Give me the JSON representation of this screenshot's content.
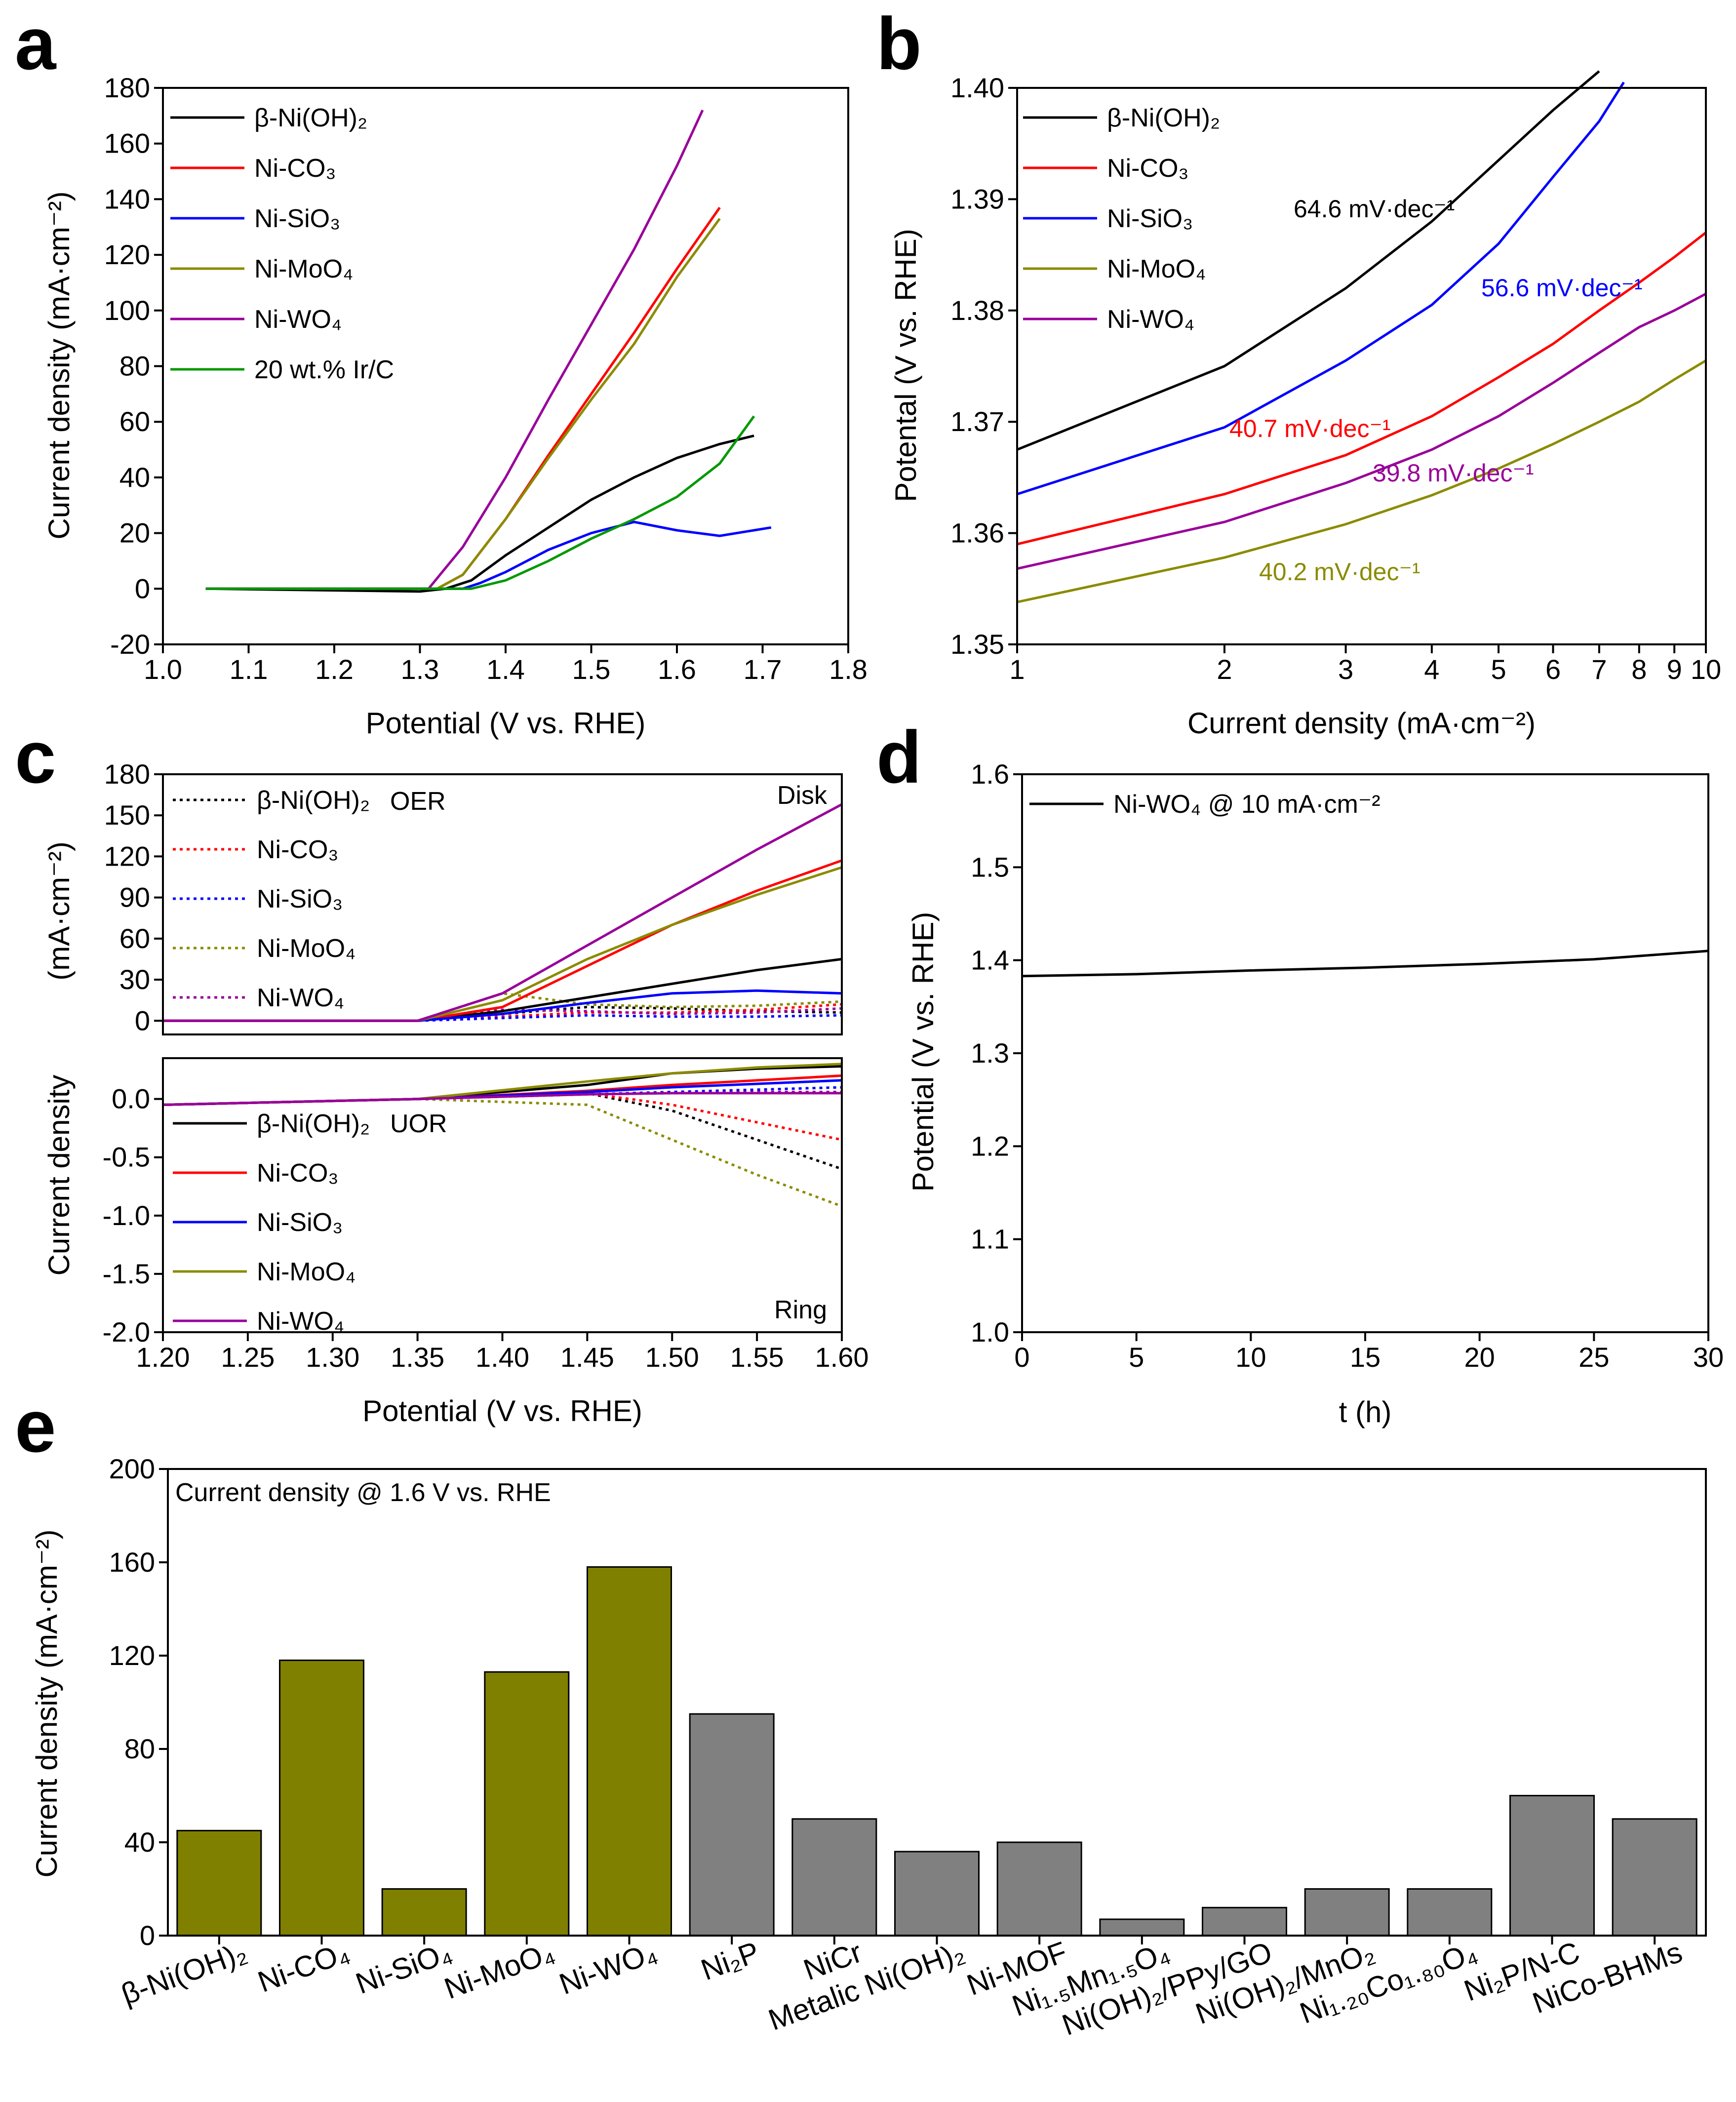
{
  "chart_data": [
    {
      "id": "a",
      "panel_label": "a",
      "type": "line",
      "xlabel": "Potential (V vs. RHE)",
      "ylabel": "Current density (mA·cm⁻²)",
      "xlim": [
        1.0,
        1.8
      ],
      "ylim": [
        -20,
        180
      ],
      "xticks": [
        "1.0",
        "1.1",
        "1.2",
        "1.3",
        "1.4",
        "1.5",
        "1.6",
        "1.7",
        "1.8"
      ],
      "yticks": [
        "-20",
        "0",
        "20",
        "40",
        "60",
        "80",
        "100",
        "120",
        "140",
        "160",
        "180"
      ],
      "series": [
        {
          "name": "β-Ni(OH)₂",
          "color": "#000000",
          "x": [
            1.05,
            1.3,
            1.33,
            1.36,
            1.4,
            1.45,
            1.5,
            1.55,
            1.6,
            1.65,
            1.69
          ],
          "y": [
            0,
            -1,
            0,
            3,
            12,
            22,
            32,
            40,
            47,
            52,
            55
          ]
        },
        {
          "name": "Ni-CO₃",
          "color": "#ff0000",
          "x": [
            1.05,
            1.32,
            1.35,
            1.4,
            1.45,
            1.5,
            1.55,
            1.6,
            1.65
          ],
          "y": [
            0,
            0,
            5,
            25,
            48,
            70,
            92,
            115,
            137
          ]
        },
        {
          "name": "Ni-SiO₃",
          "color": "#0000ff",
          "x": [
            1.05,
            1.35,
            1.37,
            1.4,
            1.45,
            1.5,
            1.55,
            1.6,
            1.65,
            1.71
          ],
          "y": [
            0,
            0,
            2,
            6,
            14,
            20,
            24,
            21,
            19,
            22
          ]
        },
        {
          "name": "Ni-MoO₄",
          "color": "#8b8b00",
          "x": [
            1.05,
            1.32,
            1.35,
            1.4,
            1.45,
            1.5,
            1.55,
            1.6,
            1.65
          ],
          "y": [
            0,
            0,
            5,
            25,
            47,
            68,
            88,
            112,
            133
          ]
        },
        {
          "name": "Ni-WO₄",
          "color": "#990099",
          "x": [
            1.05,
            1.31,
            1.35,
            1.4,
            1.45,
            1.5,
            1.55,
            1.6,
            1.63
          ],
          "y": [
            0,
            0,
            15,
            40,
            68,
            95,
            122,
            152,
            172
          ]
        },
        {
          "name": "20 wt.% Ir/C",
          "color": "#009900",
          "x": [
            1.05,
            1.36,
            1.4,
            1.45,
            1.5,
            1.55,
            1.6,
            1.65,
            1.69
          ],
          "y": [
            0,
            0,
            3,
            10,
            18,
            25,
            33,
            45,
            62
          ]
        }
      ]
    },
    {
      "id": "b",
      "panel_label": "b",
      "type": "line",
      "xlabel": "Current density (mA·cm⁻²)",
      "ylabel": "Potental (V vs. RHE)",
      "xscale": "log",
      "xlim": [
        1,
        10
      ],
      "ylim": [
        1.35,
        1.4
      ],
      "xticks": [
        "1",
        "2",
        "3",
        "4",
        "5",
        "6",
        "7",
        "8",
        "9",
        "10"
      ],
      "yticks": [
        "1.35",
        "1.36",
        "1.37",
        "1.38",
        "1.39",
        "1.40"
      ],
      "series": [
        {
          "name": "β-Ni(OH)₂",
          "color": "#000000",
          "x": [
            1,
            2,
            3,
            4,
            5,
            6,
            7
          ],
          "y": [
            1.3675,
            1.375,
            1.382,
            1.388,
            1.3935,
            1.398,
            1.4015
          ]
        },
        {
          "name": "Ni-CO₃",
          "color": "#ff0000",
          "x": [
            1,
            2,
            3,
            4,
            5,
            6,
            7,
            8,
            9,
            10
          ],
          "y": [
            1.359,
            1.3635,
            1.367,
            1.3705,
            1.374,
            1.377,
            1.38,
            1.3825,
            1.3848,
            1.387
          ]
        },
        {
          "name": "Ni-SiO₃",
          "color": "#0000ff",
          "x": [
            1,
            2,
            3,
            4,
            5,
            6,
            7,
            7.6
          ],
          "y": [
            1.3635,
            1.3695,
            1.3755,
            1.3805,
            1.386,
            1.392,
            1.397,
            1.4005
          ]
        },
        {
          "name": "Ni-MoO₄",
          "color": "#8b8b00",
          "x": [
            1,
            2,
            3,
            4,
            5,
            6,
            7,
            8,
            9,
            10
          ],
          "y": [
            1.3538,
            1.3578,
            1.3608,
            1.3634,
            1.3658,
            1.368,
            1.37,
            1.3718,
            1.3738,
            1.3755
          ]
        },
        {
          "name": "Ni-WO₄",
          "color": "#990099",
          "x": [
            1,
            2,
            3,
            4,
            5,
            6,
            7,
            8,
            9,
            10
          ],
          "y": [
            1.3568,
            1.361,
            1.3645,
            1.3675,
            1.3705,
            1.3735,
            1.3762,
            1.3785,
            1.38,
            1.3815
          ]
        }
      ],
      "annotations": [
        {
          "text": "64.6 mV·dec⁻¹",
          "color": "#000000"
        },
        {
          "text": "56.6 mV·dec⁻¹",
          "color": "#0000ff"
        },
        {
          "text": "40.7 mV·dec⁻¹",
          "color": "#ff0000"
        },
        {
          "text": "39.8 mV·dec⁻¹",
          "color": "#990099"
        },
        {
          "text": "40.2 mV·dec⁻¹",
          "color": "#8b8b00"
        }
      ]
    },
    {
      "id": "c",
      "panel_label": "c",
      "type": "line",
      "xlabel": "Potential (V vs. RHE)",
      "ylabel_top": "(mA·cm⁻²)",
      "ylabel_shared": "Current density",
      "xlim": [
        1.2,
        1.6
      ],
      "xticks": [
        "1.20",
        "1.25",
        "1.30",
        "1.35",
        "1.40",
        "1.45",
        "1.50",
        "1.55",
        "1.60"
      ],
      "disk": {
        "label": "Disk",
        "ylim": [
          -10,
          180
        ],
        "yticks": [
          "0",
          "30",
          "60",
          "90",
          "120",
          "150",
          "180"
        ],
        "legend_title": "OER",
        "series_oer": [
          {
            "name": "β-Ni(OH)₂",
            "color": "#000000",
            "x": [
              1.2,
              1.35,
              1.4,
              1.45,
              1.5,
              1.55,
              1.6
            ],
            "y": [
              0,
              0,
              5,
              10,
              9,
              7,
              6
            ]
          },
          {
            "name": "Ni-CO₃",
            "color": "#ff0000",
            "x": [
              1.2,
              1.35,
              1.4,
              1.45,
              1.5,
              1.55,
              1.6
            ],
            "y": [
              0,
              0,
              3,
              6,
              6,
              8,
              12
            ]
          },
          {
            "name": "Ni-SiO₃",
            "color": "#0000ff",
            "x": [
              1.2,
              1.35,
              1.4,
              1.45,
              1.5,
              1.55,
              1.6
            ],
            "y": [
              0,
              0,
              2,
              4,
              3,
              3,
              4
            ]
          },
          {
            "name": "Ni-MoO₄",
            "color": "#8b8b00",
            "x": [
              1.2,
              1.35,
              1.4,
              1.45,
              1.5,
              1.55,
              1.6
            ],
            "y": [
              0,
              0,
              20,
              12,
              10,
              11,
              14
            ]
          },
          {
            "name": "Ni-WO₄",
            "color": "#990099",
            "x": [
              1.2,
              1.35,
              1.4,
              1.45,
              1.5,
              1.55,
              1.6
            ],
            "y": [
              0,
              0,
              8,
              7,
              5,
              6,
              9
            ]
          }
        ],
        "series_uor": [
          {
            "name": "β-Ni(OH)₂",
            "color": "#000000",
            "x": [
              1.2,
              1.35,
              1.4,
              1.45,
              1.5,
              1.55,
              1.6
            ],
            "y": [
              0,
              0,
              7,
              17,
              27,
              37,
              45
            ]
          },
          {
            "name": "Ni-CO₃",
            "color": "#ff0000",
            "x": [
              1.2,
              1.35,
              1.4,
              1.45,
              1.5,
              1.55,
              1.6
            ],
            "y": [
              0,
              0,
              10,
              40,
              70,
              95,
              117
            ]
          },
          {
            "name": "Ni-SiO₃",
            "color": "#0000ff",
            "x": [
              1.2,
              1.35,
              1.4,
              1.45,
              1.5,
              1.55,
              1.6
            ],
            "y": [
              0,
              0,
              5,
              13,
              20,
              22,
              20
            ]
          },
          {
            "name": "Ni-MoO₄",
            "color": "#8b8b00",
            "x": [
              1.2,
              1.35,
              1.4,
              1.45,
              1.5,
              1.55,
              1.6
            ],
            "y": [
              0,
              0,
              15,
              45,
              70,
              92,
              112
            ]
          },
          {
            "name": "Ni-WO₄",
            "color": "#990099",
            "x": [
              1.2,
              1.35,
              1.4,
              1.45,
              1.5,
              1.55,
              1.6
            ],
            "y": [
              0,
              0,
              20,
              55,
              90,
              125,
              158
            ]
          }
        ]
      },
      "ring": {
        "label": "Ring",
        "ylim": [
          -2.0,
          0.35
        ],
        "yticks": [
          "-2.0",
          "-1.5",
          "-1.0",
          "-0.5",
          "0.0"
        ],
        "legend_title": "UOR",
        "series_oer": [
          {
            "name": "β-Ni(OH)₂",
            "color": "#000000",
            "x": [
              1.2,
              1.35,
              1.45,
              1.5,
              1.55,
              1.6
            ],
            "y": [
              -0.05,
              0,
              0.05,
              -0.1,
              -0.35,
              -0.6
            ]
          },
          {
            "name": "Ni-CO₃",
            "color": "#ff0000",
            "x": [
              1.2,
              1.35,
              1.45,
              1.5,
              1.55,
              1.6
            ],
            "y": [
              -0.05,
              0,
              0.05,
              -0.05,
              -0.2,
              -0.35
            ]
          },
          {
            "name": "Ni-SiO₃",
            "color": "#0000ff",
            "x": [
              1.2,
              1.35,
              1.45,
              1.5,
              1.55,
              1.6
            ],
            "y": [
              -0.05,
              0,
              0.04,
              0.06,
              0.08,
              0.1
            ]
          },
          {
            "name": "Ni-MoO₄",
            "color": "#8b8b00",
            "x": [
              1.2,
              1.35,
              1.45,
              1.5,
              1.55,
              1.6
            ],
            "y": [
              -0.05,
              0,
              -0.05,
              -0.35,
              -0.65,
              -0.92
            ]
          },
          {
            "name": "Ni-WO₄",
            "color": "#990099",
            "x": [
              1.2,
              1.35,
              1.45,
              1.5,
              1.55,
              1.6
            ],
            "y": [
              -0.05,
              0,
              0.04,
              0.05,
              0.06,
              0.06
            ]
          }
        ],
        "series_uor": [
          {
            "name": "β-Ni(OH)₂",
            "color": "#000000",
            "x": [
              1.2,
              1.35,
              1.45,
              1.5,
              1.55,
              1.6
            ],
            "y": [
              -0.05,
              0,
              0.12,
              0.22,
              0.26,
              0.28
            ]
          },
          {
            "name": "Ni-CO₃",
            "color": "#ff0000",
            "x": [
              1.2,
              1.35,
              1.45,
              1.5,
              1.55,
              1.6
            ],
            "y": [
              -0.05,
              0,
              0.07,
              0.12,
              0.16,
              0.2
            ]
          },
          {
            "name": "Ni-SiO₃",
            "color": "#0000ff",
            "x": [
              1.2,
              1.35,
              1.45,
              1.5,
              1.55,
              1.6
            ],
            "y": [
              -0.05,
              0,
              0.06,
              0.1,
              0.13,
              0.16
            ]
          },
          {
            "name": "Ni-MoO₄",
            "color": "#8b8b00",
            "x": [
              1.2,
              1.35,
              1.45,
              1.5,
              1.55,
              1.6
            ],
            "y": [
              -0.05,
              0,
              0.15,
              0.22,
              0.27,
              0.3
            ]
          },
          {
            "name": "Ni-WO₄",
            "color": "#990099",
            "x": [
              1.2,
              1.35,
              1.45,
              1.5,
              1.55,
              1.6
            ],
            "y": [
              -0.05,
              0,
              0.04,
              0.05,
              0.05,
              0.05
            ]
          }
        ]
      }
    },
    {
      "id": "d",
      "panel_label": "d",
      "type": "line",
      "xlabel": "t (h)",
      "ylabel": "Potential (V vs. RHE)",
      "xlim": [
        0,
        30
      ],
      "ylim": [
        1.0,
        1.6
      ],
      "xticks": [
        "0",
        "5",
        "10",
        "15",
        "20",
        "25",
        "30"
      ],
      "yticks": [
        "1.0",
        "1.1",
        "1.2",
        "1.3",
        "1.4",
        "1.5",
        "1.6"
      ],
      "series": [
        {
          "name": "Ni-WO₄ @ 10 mA·cm⁻²",
          "color": "#000000",
          "x": [
            0,
            5,
            10,
            15,
            20,
            25,
            30
          ],
          "y": [
            1.383,
            1.385,
            1.389,
            1.392,
            1.396,
            1.401,
            1.41
          ]
        }
      ]
    },
    {
      "id": "e",
      "panel_label": "e",
      "type": "bar",
      "title": "Current density @ 1.6 V vs. RHE",
      "ylabel": "Current density (mA·cm⁻²)",
      "ylim": [
        0,
        200
      ],
      "yticks": [
        "0",
        "40",
        "80",
        "120",
        "160",
        "200"
      ],
      "categories": [
        "β-Ni(OH)₂",
        "Ni-CO₄",
        "Ni-SiO₄",
        "Ni-MoO₄",
        "Ni-WO₄",
        "Ni₂P",
        "NiCr",
        "Metalic Ni(OH)₂",
        "Ni-MOF",
        "Ni₁.₅Mn₁.₅O₄",
        "Ni(OH)₂/PPy/GO",
        "Ni(OH)₂/MnO₂",
        "Ni₁.₂₀Co₁.₈₀O₄",
        "Ni₂P/N-C",
        "NiCo-BHMs"
      ],
      "values": [
        45,
        118,
        20,
        113,
        158,
        95,
        50,
        36,
        40,
        7,
        12,
        20,
        20,
        60,
        50
      ],
      "colors": [
        "#808000",
        "#808000",
        "#808000",
        "#808000",
        "#808000",
        "#808080",
        "#808080",
        "#808080",
        "#808080",
        "#808080",
        "#808080",
        "#808080",
        "#808080",
        "#808080",
        "#808080"
      ]
    }
  ]
}
